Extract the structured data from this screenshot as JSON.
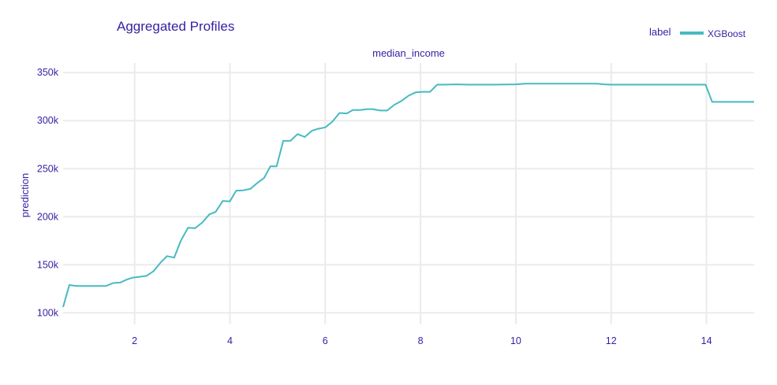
{
  "chart_data": {
    "type": "line",
    "title": "Aggregated Profiles",
    "subtitle": "median_income",
    "xlabel": "",
    "ylabel": "prediction",
    "xlim": [
      0.5,
      15
    ],
    "ylim": [
      88000,
      360000
    ],
    "x_ticks": [
      2,
      4,
      6,
      8,
      10,
      12,
      14
    ],
    "y_ticks": [
      100000,
      150000,
      200000,
      250000,
      300000,
      350000
    ],
    "y_tick_labels": [
      "100k",
      "150k",
      "200k",
      "250k",
      "300k",
      "350k"
    ],
    "grid": true,
    "legend": {
      "title": "label",
      "position": "top-right"
    },
    "series": [
      {
        "name": "XGBoost",
        "color": "#46bac2",
        "x": [
          0.5,
          0.63,
          0.78,
          1.0,
          1.2,
          1.4,
          1.55,
          1.7,
          1.83,
          1.95,
          2.1,
          2.25,
          2.4,
          2.55,
          2.68,
          2.83,
          2.97,
          3.12,
          3.27,
          3.42,
          3.57,
          3.7,
          3.85,
          4.0,
          4.13,
          4.28,
          4.43,
          4.57,
          4.72,
          4.85,
          4.98,
          5.12,
          5.27,
          5.42,
          5.57,
          5.72,
          5.85,
          6.0,
          6.15,
          6.3,
          6.45,
          6.58,
          6.73,
          6.88,
          7.0,
          7.15,
          7.3,
          7.45,
          7.6,
          7.75,
          7.9,
          8.05,
          8.2,
          8.35,
          8.5,
          8.75,
          9.0,
          9.5,
          10.0,
          10.2,
          10.5,
          11.0,
          11.7,
          11.85,
          12.0,
          12.5,
          13.0,
          13.5,
          13.98,
          14.12,
          14.5,
          15.0
        ],
        "y": [
          106000,
          129000,
          128000,
          128000,
          128000,
          128000,
          131000,
          131500,
          134500,
          136500,
          137500,
          138500,
          143500,
          152500,
          159000,
          157500,
          175000,
          188500,
          188000,
          194000,
          202500,
          205000,
          216500,
          216000,
          227000,
          227500,
          229000,
          235000,
          240500,
          252500,
          252500,
          279000,
          279000,
          286000,
          283000,
          289500,
          291500,
          293000,
          299000,
          308000,
          307500,
          311000,
          311000,
          312000,
          312000,
          310500,
          310500,
          316500,
          320500,
          326000,
          329500,
          330000,
          330000,
          337500,
          337500,
          337800,
          337500,
          337500,
          337800,
          338500,
          338500,
          338500,
          338500,
          337800,
          337500,
          337500,
          337500,
          337500,
          337500,
          319500,
          319500,
          319500
        ]
      }
    ]
  }
}
